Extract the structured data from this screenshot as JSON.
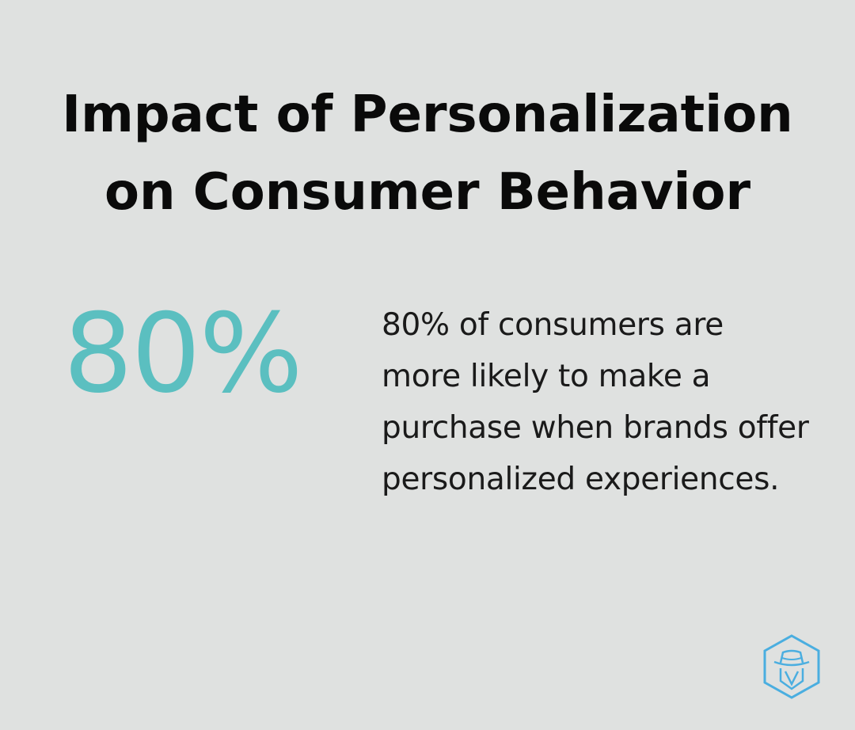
{
  "title": {
    "line1": "Impact of Personalization",
    "line2": "on Consumer Behavior"
  },
  "stat": {
    "value": "80%",
    "description": "80% of consumers are more likely to make a purchase when brands offer personalized experiences."
  },
  "colors": {
    "background": "#dfe1e0",
    "accent": "#5bbfc0",
    "title": "#0a0a0a",
    "logo": "#4aaee0"
  },
  "logo": {
    "icon": "spy-hexagon-logo-icon"
  }
}
